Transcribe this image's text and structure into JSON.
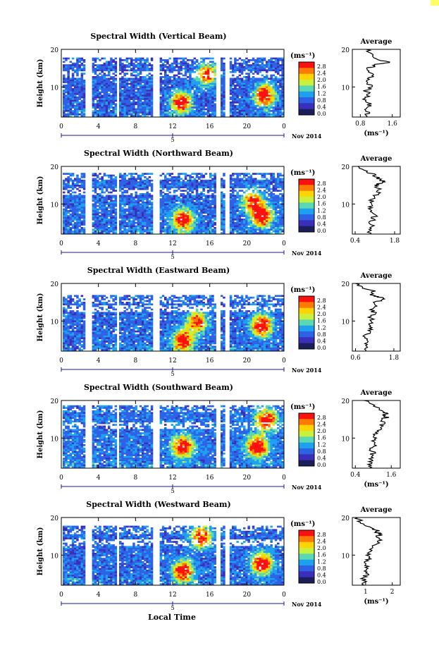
{
  "figure": {
    "x_axis_title": "Local Time",
    "date_label": "Nov 2014",
    "day_label": "5",
    "colorbar_unit": "(ms⁻¹)",
    "colorbar_ticks": [
      "2.8",
      "2.4",
      "2.0",
      "1.6",
      "1.2",
      "0.8",
      "0.4",
      "0.0"
    ],
    "colorbar_colors": [
      "#ff1010",
      "#ff7a00",
      "#ffd400",
      "#c8f03c",
      "#5ad8b4",
      "#1ea0f0",
      "#2d62e6",
      "#3a2fb8",
      "#1a1f5c"
    ],
    "background_color": "#ffffff"
  },
  "chart_data": [
    {
      "type": "heatmap",
      "title": "Spectral Width (Vertical Beam)",
      "ylabel": "Height (km)",
      "xlabel": "",
      "x_ticks": [
        "0",
        "4",
        "8",
        "12",
        "16",
        "20",
        "0"
      ],
      "y_ticks": [
        "20",
        "10"
      ],
      "xlim": [
        0,
        24
      ],
      "ylim": [
        2,
        20
      ],
      "colorbar_range": [
        0.0,
        3.0
      ],
      "data_gaps_hours": [
        [
          2.4,
          3.2
        ],
        [
          5.8,
          6.1
        ],
        [
          9.7,
          10.4
        ],
        [
          16.6,
          17.1
        ],
        [
          17.6,
          18.0
        ]
      ],
      "top_height_km": 18.2,
      "hotspots": [
        {
          "t": 12.8,
          "h": 6,
          "v": 2.6
        },
        {
          "t": 21.8,
          "h": 8,
          "v": 2.8
        },
        {
          "t": 15.6,
          "h": 13.5,
          "v": 2.2
        }
      ],
      "base_value": 0.5
    },
    {
      "type": "line",
      "title": "Average",
      "xlabel": "(ms⁻¹)",
      "x_ticks": [
        "0.8",
        "1.6"
      ],
      "y_ticks": [
        "20",
        "10"
      ],
      "xlim": [
        0.6,
        1.8
      ],
      "ylim": [
        2,
        20
      ],
      "x": [
        0.95,
        1.0,
        0.92,
        1.05,
        0.98,
        0.9,
        1.02,
        0.94,
        1.08,
        1.0,
        0.96,
        1.1,
        1.05,
        0.98,
        1.15,
        1.2,
        1.6,
        1.3,
        1.1,
        1.05,
        0.95
      ],
      "y": [
        2,
        3,
        4,
        5,
        6,
        7,
        8,
        9,
        10,
        11,
        12,
        13,
        14,
        15,
        15.5,
        16,
        16.5,
        17,
        18,
        19,
        20
      ]
    },
    {
      "type": "heatmap",
      "title": "Spectral Width (Northward Beam)",
      "ylabel": "Height (km)",
      "xlabel": "",
      "x_ticks": [
        "0",
        "4",
        "8",
        "12",
        "16",
        "20",
        "0"
      ],
      "y_ticks": [
        "20",
        "10"
      ],
      "xlim": [
        0,
        24
      ],
      "ylim": [
        2,
        20
      ],
      "colorbar_range": [
        0.0,
        3.0
      ],
      "data_gaps_hours": [
        [
          2.4,
          3.2
        ],
        [
          5.8,
          6.1
        ],
        [
          9.7,
          10.4
        ],
        [
          16.6,
          17.1
        ],
        [
          17.6,
          18.0
        ]
      ],
      "top_height_km": 18.5,
      "hotspots": [
        {
          "t": 13.0,
          "h": 6,
          "v": 2.7
        },
        {
          "t": 21.5,
          "h": 7,
          "v": 2.8
        },
        {
          "t": 20.5,
          "h": 11,
          "v": 2.2
        }
      ],
      "base_value": 0.55
    },
    {
      "type": "line",
      "title": "Average",
      "xlabel": "",
      "x_ticks": [
        "0.4",
        "1.8"
      ],
      "y_ticks": [
        "20",
        "10"
      ],
      "xlim": [
        0.3,
        2.0
      ],
      "ylim": [
        2,
        20
      ],
      "x": [
        0.9,
        0.95,
        1.0,
        0.92,
        1.05,
        1.1,
        1.0,
        0.95,
        1.05,
        1.0,
        1.1,
        1.2,
        1.25,
        1.15,
        1.3,
        1.4,
        1.3,
        1.2,
        1.0,
        0.7,
        0.5
      ],
      "y": [
        2,
        3,
        4,
        5,
        6,
        7,
        8,
        9,
        10,
        11,
        12,
        13,
        14,
        15,
        15.5,
        16,
        16.5,
        17,
        18,
        19,
        20
      ]
    },
    {
      "type": "heatmap",
      "title": "Spectral Width (Eastward Beam)",
      "ylabel": "Height (km)",
      "xlabel": "",
      "x_ticks": [
        "0",
        "4",
        "8",
        "12",
        "16",
        "20",
        "0"
      ],
      "y_ticks": [
        "20",
        "10"
      ],
      "xlim": [
        0,
        24
      ],
      "ylim": [
        2,
        20
      ],
      "colorbar_range": [
        0.0,
        3.0
      ],
      "data_gaps_hours": [
        [
          2.4,
          3.2
        ],
        [
          5.8,
          6.1
        ],
        [
          9.7,
          10.4
        ],
        [
          16.6,
          17.1
        ],
        [
          17.6,
          18.0
        ]
      ],
      "top_height_km": 17.0,
      "hotspots": [
        {
          "t": 13.0,
          "h": 5,
          "v": 2.5
        },
        {
          "t": 21.5,
          "h": 9,
          "v": 2.8
        },
        {
          "t": 14.5,
          "h": 10,
          "v": 2.2
        }
      ],
      "base_value": 0.55
    },
    {
      "type": "line",
      "title": "Average",
      "xlabel": "",
      "x_ticks": [
        "0.6",
        "1.8"
      ],
      "y_ticks": [
        "20",
        "10"
      ],
      "xlim": [
        0.5,
        2.0
      ],
      "ylim": [
        2,
        20
      ],
      "x": [
        0.85,
        0.9,
        0.95,
        1.0,
        0.92,
        1.05,
        1.1,
        1.0,
        1.15,
        1.05,
        1.2,
        1.1,
        1.3,
        1.2,
        1.4,
        1.5,
        1.3,
        1.1,
        1.2,
        0.8,
        0.6
      ],
      "y": [
        2,
        3,
        4,
        5,
        6,
        7,
        8,
        9,
        10,
        11,
        12,
        13,
        14,
        15,
        15.5,
        16,
        16.5,
        17,
        18,
        19,
        20
      ]
    },
    {
      "type": "heatmap",
      "title": "Spectral Width (Southward Beam)",
      "ylabel": "Height (km)",
      "xlabel": "",
      "x_ticks": [
        "0",
        "4",
        "8",
        "12",
        "16",
        "20",
        "0"
      ],
      "y_ticks": [
        "20",
        "10"
      ],
      "xlim": [
        0,
        24
      ],
      "ylim": [
        2,
        20
      ],
      "colorbar_range": [
        0.0,
        3.0
      ],
      "data_gaps_hours": [
        [
          2.4,
          3.2
        ],
        [
          5.8,
          6.1
        ],
        [
          9.7,
          10.4
        ],
        [
          16.6,
          17.1
        ],
        [
          17.6,
          18.0
        ]
      ],
      "top_height_km": 19.0,
      "hotspots": [
        {
          "t": 13.0,
          "h": 8,
          "v": 2.7
        },
        {
          "t": 21.0,
          "h": 8,
          "v": 2.8
        },
        {
          "t": 22.0,
          "h": 15,
          "v": 2.4
        }
      ],
      "base_value": 0.6
    },
    {
      "type": "line",
      "title": "Average",
      "xlabel": "(ms⁻¹)",
      "x_ticks": [
        "0.4",
        "1.6"
      ],
      "y_ticks": [
        "20",
        "10"
      ],
      "xlim": [
        0.3,
        1.9
      ],
      "ylim": [
        2,
        20
      ],
      "x": [
        0.9,
        0.85,
        0.95,
        0.9,
        1.0,
        0.95,
        1.05,
        1.0,
        1.1,
        1.05,
        1.15,
        1.25,
        1.35,
        1.3,
        1.45,
        1.35,
        1.5,
        1.3,
        1.2,
        0.9,
        0.7
      ],
      "y": [
        2,
        3,
        4,
        5,
        6,
        7,
        8,
        9,
        10,
        11,
        12,
        13,
        14,
        15,
        15.5,
        16,
        16.5,
        17,
        18,
        19,
        20
      ]
    },
    {
      "type": "heatmap",
      "title": "Spectral Width (Westward Beam)",
      "ylabel": "Height (km)",
      "xlabel": "",
      "x_ticks": [
        "0",
        "4",
        "8",
        "12",
        "16",
        "20",
        "0"
      ],
      "y_ticks": [
        "20",
        "10"
      ],
      "xlim": [
        0,
        24
      ],
      "ylim": [
        2,
        20
      ],
      "colorbar_range": [
        0.0,
        3.0
      ],
      "data_gaps_hours": [
        [
          2.4,
          3.2
        ],
        [
          5.8,
          6.1
        ],
        [
          9.7,
          10.4
        ],
        [
          16.6,
          17.1
        ],
        [
          17.6,
          18.0
        ]
      ],
      "top_height_km": 18.0,
      "hotspots": [
        {
          "t": 13.0,
          "h": 6,
          "v": 2.7
        },
        {
          "t": 21.5,
          "h": 8,
          "v": 2.8
        },
        {
          "t": 15.0,
          "h": 15,
          "v": 2.4
        }
      ],
      "base_value": 0.55
    },
    {
      "type": "line",
      "title": "Average",
      "xlabel": "(ms⁻¹)",
      "x_ticks": [
        "1",
        "2"
      ],
      "y_ticks": [
        "20",
        "10"
      ],
      "xlim": [
        0.5,
        2.3
      ],
      "ylim": [
        2,
        20
      ],
      "x": [
        0.95,
        1.0,
        0.9,
        1.05,
        0.95,
        1.1,
        1.0,
        1.15,
        1.1,
        1.2,
        1.3,
        1.4,
        1.5,
        1.35,
        1.6,
        1.4,
        1.5,
        1.2,
        1.0,
        0.8,
        0.7
      ],
      "y": [
        2,
        3,
        4,
        5,
        6,
        7,
        8,
        9,
        10,
        11,
        12,
        13,
        14,
        15,
        15.5,
        16,
        16.5,
        17,
        18,
        19,
        20
      ]
    }
  ]
}
